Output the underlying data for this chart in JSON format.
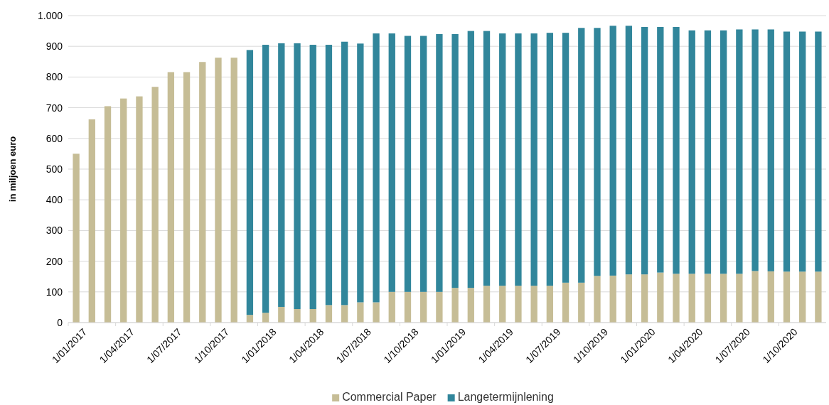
{
  "chart_data": {
    "type": "bar",
    "stacked": true,
    "ylabel": "in miljoen euro",
    "categories": [
      "1/01/2017",
      null,
      null,
      "1/04/2017",
      null,
      null,
      "1/07/2017",
      null,
      null,
      "1/10/2017",
      null,
      null,
      "1/01/2018",
      null,
      null,
      "1/04/2018",
      null,
      null,
      "1/07/2018",
      null,
      null,
      "1/10/2018",
      null,
      null,
      "1/01/2019",
      null,
      null,
      "1/04/2019",
      null,
      null,
      "1/07/2019",
      null,
      null,
      "1/10/2019",
      null,
      null,
      "1/01/2020",
      null,
      null,
      "1/04/2020",
      null,
      null,
      "1/07/2020",
      null,
      null,
      "1/10/2020",
      null,
      null
    ],
    "series": [
      {
        "name": "Commercial Paper",
        "color": "#c6bd96",
        "values": [
          550,
          662,
          705,
          730,
          737,
          768,
          816,
          816,
          849,
          863,
          863,
          25,
          32,
          51,
          44,
          44,
          57,
          57,
          66,
          66,
          100,
          100,
          100,
          100,
          113,
          113,
          120,
          120,
          120,
          120,
          120,
          130,
          130,
          152,
          153,
          157,
          157,
          163,
          159,
          159,
          159,
          159,
          159,
          168,
          167,
          166,
          166,
          166
        ]
      },
      {
        "name": "Langetermijnlening",
        "color": "#31869b",
        "values": [
          null,
          null,
          null,
          null,
          null,
          null,
          null,
          null,
          null,
          null,
          null,
          863,
          873,
          859,
          866,
          861,
          848,
          858,
          843,
          876,
          842,
          834,
          834,
          840,
          827,
          837,
          830,
          822,
          822,
          822,
          824,
          814,
          830,
          808,
          814,
          810,
          806,
          800,
          804,
          793,
          793,
          793,
          796,
          787,
          788,
          782,
          782,
          782
        ]
      }
    ],
    "ylim": [
      0,
      1000
    ],
    "yticks": [
      0,
      100,
      200,
      300,
      400,
      500,
      600,
      700,
      800,
      900,
      {
        "value": 1000,
        "label": "1.000"
      }
    ],
    "grid": "y",
    "legend": "bottom"
  }
}
